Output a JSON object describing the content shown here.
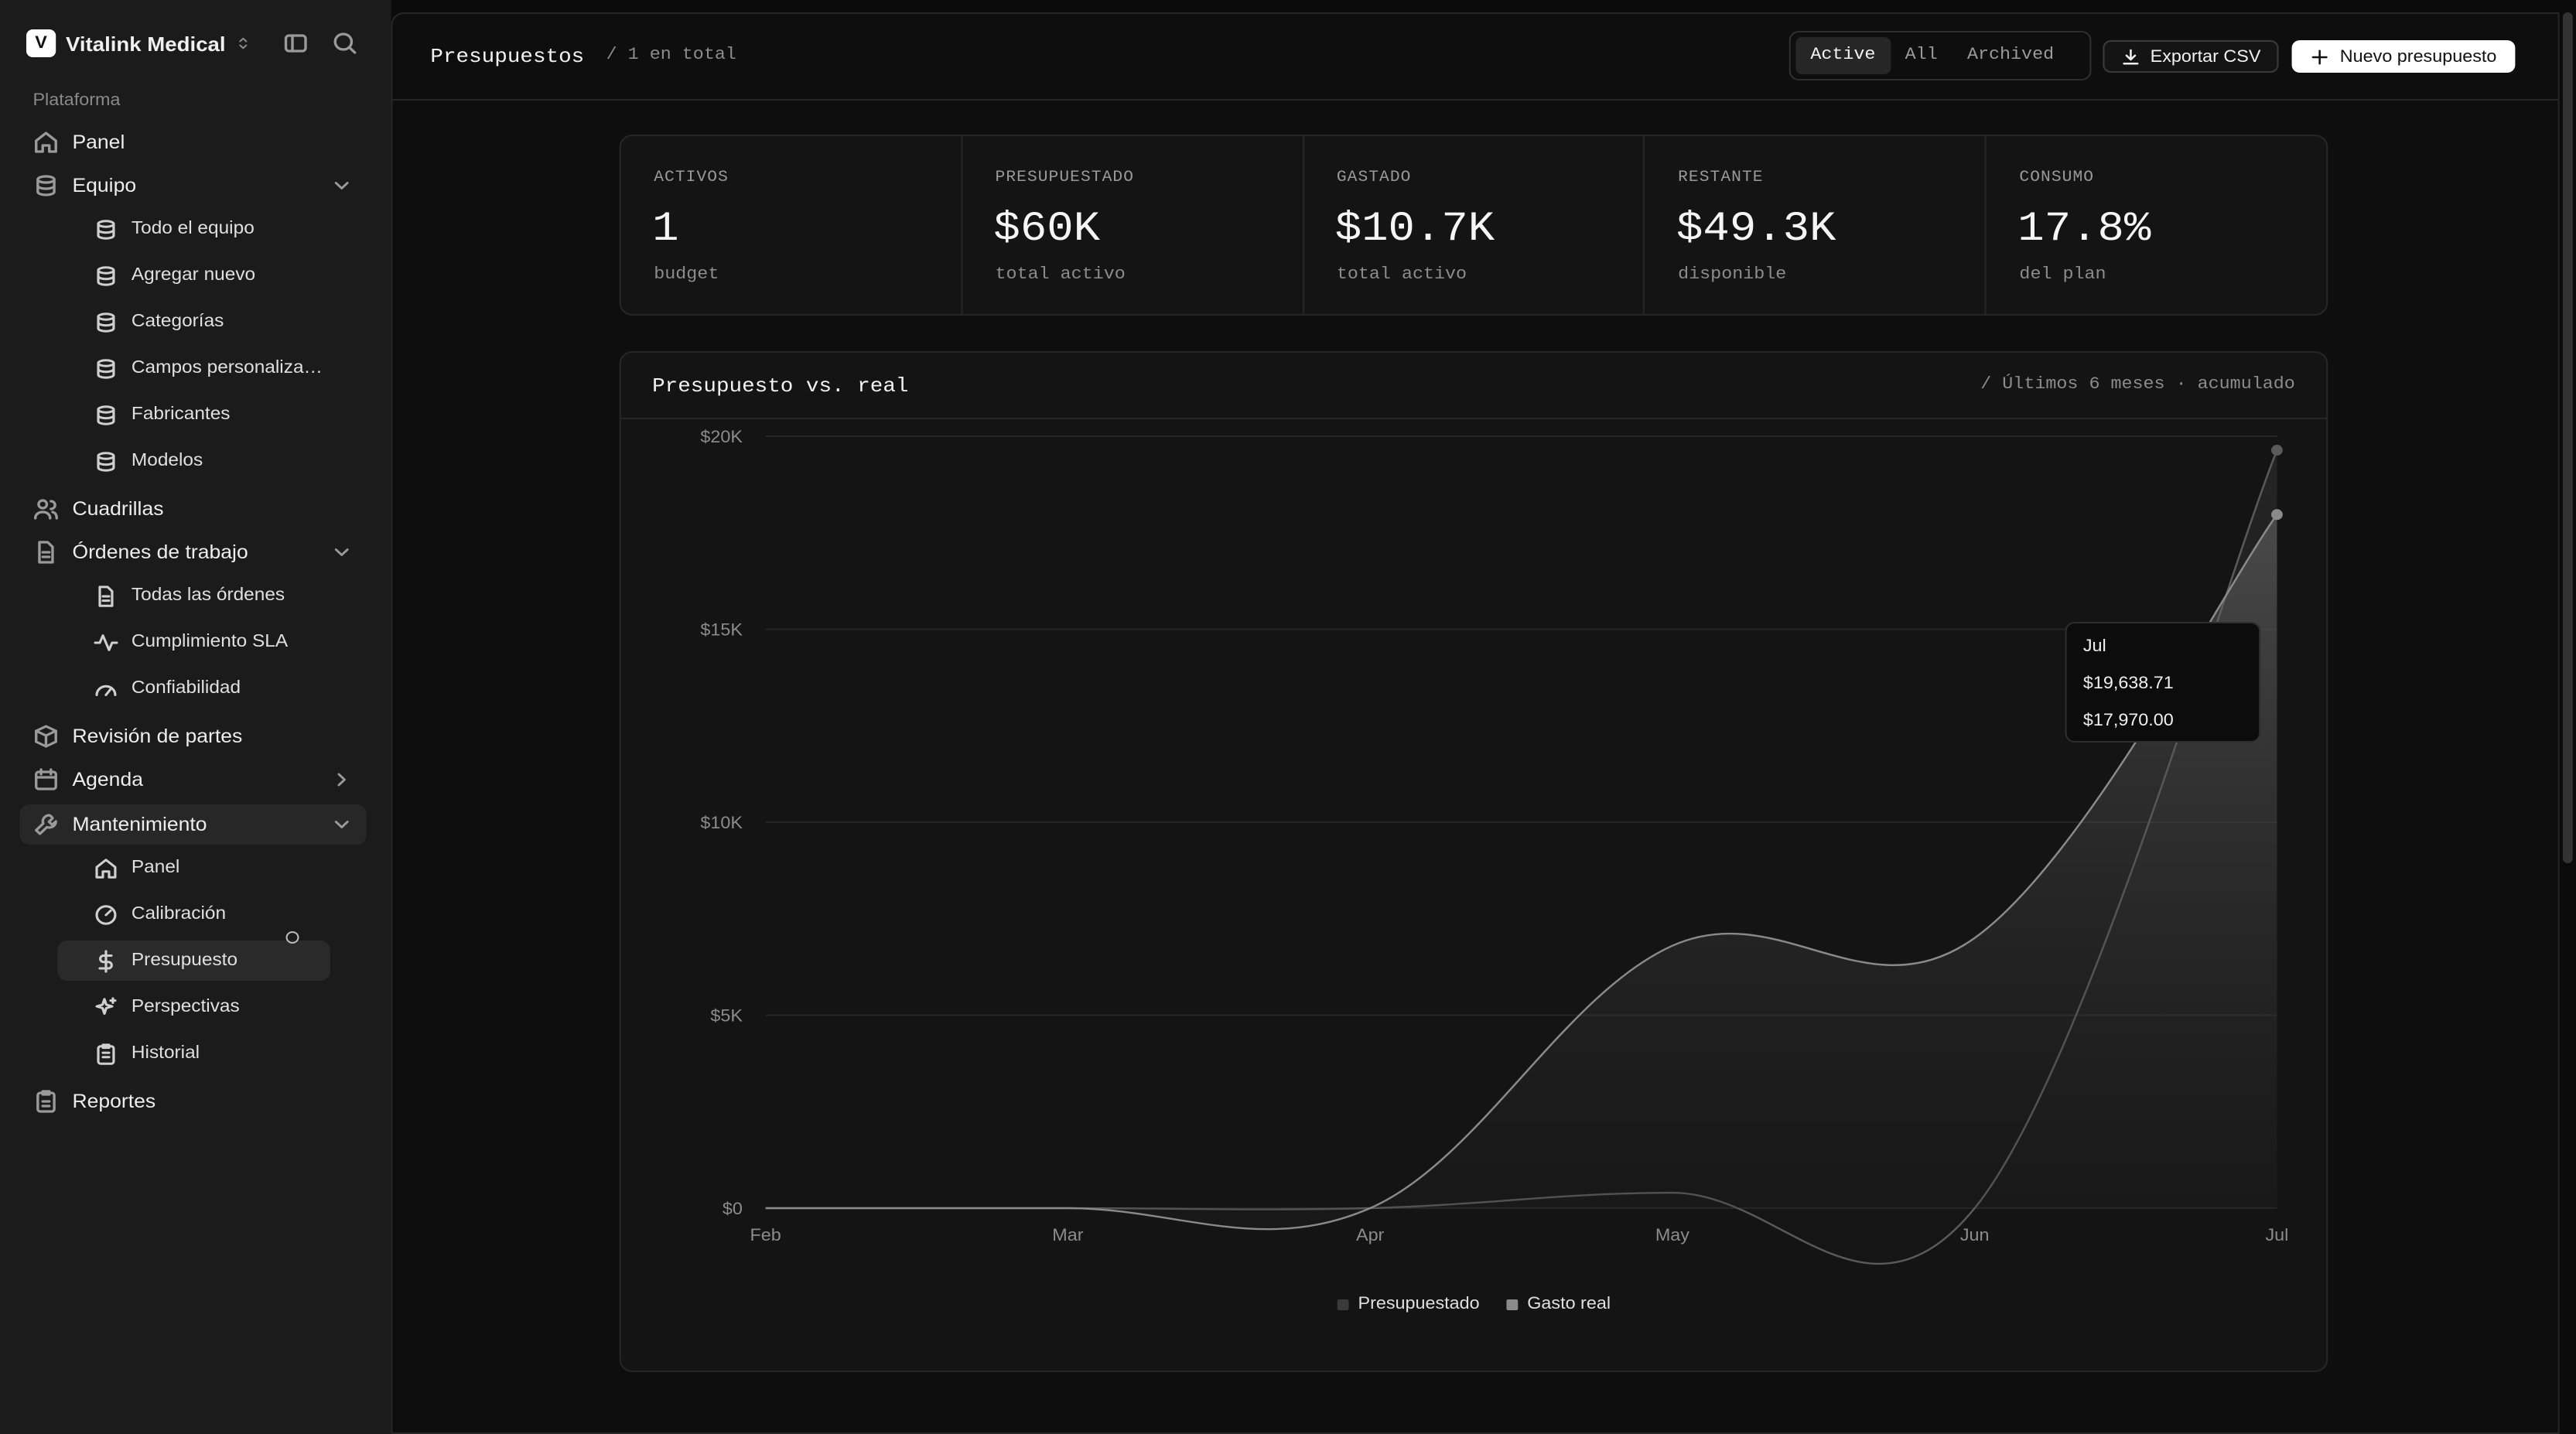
{
  "workspace": {
    "name": "Vitalink Medical",
    "logo_letter": "V"
  },
  "sidebar": {
    "section_label": "Plataforma",
    "items": [
      {
        "label": "Panel"
      },
      {
        "label": "Equipo",
        "children": [
          "Todo el equipo",
          "Agregar nuevo",
          "Categorías",
          "Campos personaliza…",
          "Fabricantes",
          "Modelos"
        ]
      },
      {
        "label": "Cuadrillas"
      },
      {
        "label": "Órdenes de trabajo",
        "children": [
          "Todas las órdenes",
          "Cumplimiento SLA",
          "Confiabilidad"
        ]
      },
      {
        "label": "Revisión de partes"
      },
      {
        "label": "Agenda"
      },
      {
        "label": "Mantenimiento",
        "children": [
          "Panel",
          "Calibración",
          "Presupuesto",
          "Perspectivas",
          "Historial"
        ]
      },
      {
        "label": "Reportes"
      }
    ]
  },
  "header": {
    "title": "Presupuestos",
    "count": "/ 1 en total",
    "filters": [
      "Active",
      "All",
      "Archived"
    ],
    "selected_filter": "Active",
    "export_label": "Exportar CSV",
    "new_label": "Nuevo presupuesto"
  },
  "stats": [
    {
      "label": "ACTIVOS",
      "value": "1",
      "sub": "budget"
    },
    {
      "label": "PRESUPUESTADO",
      "value": "$60K",
      "sub": "total activo"
    },
    {
      "label": "GASTADO",
      "value": "$10.7K",
      "sub": "total activo"
    },
    {
      "label": "RESTANTE",
      "value": "$49.3K",
      "sub": "disponible"
    },
    {
      "label": "CONSUMO",
      "value": "17.8%",
      "sub": "del plan"
    }
  ],
  "chart": {
    "title": "Presupuesto vs. real",
    "meta": "/ Últimos 6 meses · acumulado",
    "tooltip": {
      "month": "Jul",
      "budgeted": "$19,638.71",
      "actual": "$17,970.00"
    }
  },
  "colors": {
    "budget_swatch": "#3a3a3a",
    "actual_swatch": "#8a8a8a"
  },
  "chart_data": {
    "type": "area",
    "title": "Presupuesto vs. real",
    "categories": [
      "Feb",
      "Mar",
      "Apr",
      "May",
      "Jun",
      "Jul"
    ],
    "y_ticks": [
      "$0",
      "$5K",
      "$10K",
      "$15K",
      "$20K"
    ],
    "ylim": [
      0,
      20000
    ],
    "grid": true,
    "legend": "bottom-center",
    "series": [
      {
        "name": "Presupuestado",
        "values": [
          0,
          0,
          0,
          400,
          0,
          19638.71
        ]
      },
      {
        "name": "Gasto real",
        "values": [
          0,
          0,
          0,
          6800,
          7000,
          17970
        ]
      }
    ]
  }
}
